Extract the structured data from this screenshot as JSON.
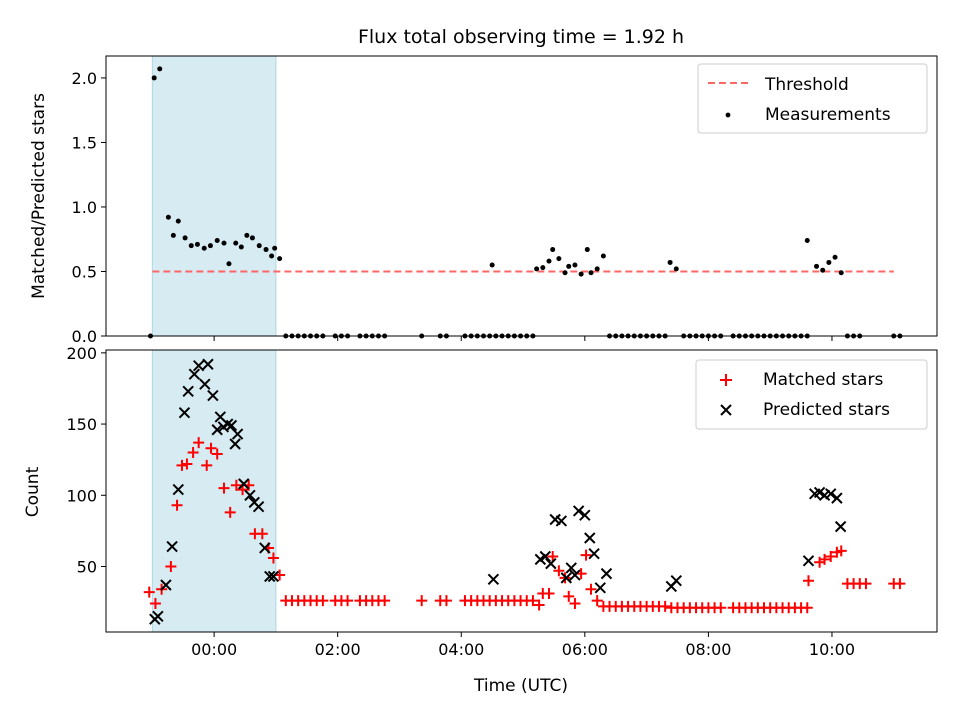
{
  "figure": {
    "title": "Flux total observing time = 1.92 h",
    "xlabel": "Time (UTC)",
    "xticks": [
      "00:00",
      "02:00",
      "04:00",
      "06:00",
      "08:00",
      "10:00"
    ]
  },
  "chart_data": [
    {
      "type": "scatter",
      "ylabel": "Matched/Predicted stars",
      "ylim": [
        0,
        2.17
      ],
      "yticks": [
        "0.0",
        "0.5",
        "1.0",
        "1.5",
        "2.0"
      ],
      "xlim": [
        -1.75,
        11.7
      ],
      "legend_position": "top-right",
      "shaded_span": [
        -1.0,
        1.0
      ],
      "threshold": {
        "name": "Threshold",
        "value": 0.5,
        "x_range": [
          -1.0,
          11.0
        ],
        "color": "#ff6666"
      },
      "measurements": {
        "name": "Measurements",
        "color": "#000000",
        "x": [
          -1.03,
          -0.97,
          -0.88,
          -0.74,
          -0.66,
          -0.58,
          -0.47,
          -0.37,
          -0.27,
          -0.16,
          -0.06,
          0.05,
          0.16,
          0.24,
          0.35,
          0.44,
          0.53,
          0.62,
          0.73,
          0.84,
          0.93,
          0.98,
          1.06,
          1.16,
          1.26,
          1.36,
          1.46,
          1.56,
          1.66,
          1.76,
          1.96,
          2.06,
          2.16,
          2.36,
          2.46,
          2.56,
          2.66,
          2.76,
          3.36,
          3.66,
          3.76,
          4.06,
          4.16,
          4.26,
          4.36,
          4.46,
          4.56,
          4.66,
          4.76,
          4.86,
          4.96,
          5.06,
          5.16,
          4.5,
          5.22,
          5.32,
          5.42,
          5.48,
          5.58,
          5.68,
          5.74,
          5.84,
          5.94,
          6.04,
          6.1,
          6.2,
          6.3,
          7.38,
          7.48,
          9.6,
          9.75,
          9.85,
          9.95,
          10.05,
          10.15,
          6.4,
          6.5,
          6.6,
          6.7,
          6.8,
          6.9,
          7.0,
          7.1,
          7.2,
          7.3,
          7.6,
          7.7,
          7.8,
          7.9,
          8.0,
          8.1,
          8.2,
          8.4,
          8.5,
          8.6,
          8.7,
          8.8,
          8.9,
          9.0,
          9.1,
          9.2,
          9.3,
          9.4,
          9.5,
          9.6,
          10.25,
          10.35,
          10.45,
          11.0,
          11.1
        ],
        "y": [
          0.0,
          2.0,
          2.07,
          0.92,
          0.78,
          0.89,
          0.76,
          0.7,
          0.71,
          0.68,
          0.7,
          0.74,
          0.72,
          0.56,
          0.72,
          0.69,
          0.78,
          0.76,
          0.7,
          0.67,
          0.62,
          0.68,
          0.6,
          0.0,
          0.0,
          0.0,
          0.0,
          0.0,
          0.0,
          0.0,
          0.0,
          0.0,
          0.0,
          0.0,
          0.0,
          0.0,
          0.0,
          0.0,
          0.0,
          0.0,
          0.0,
          0.0,
          0.0,
          0.0,
          0.0,
          0.0,
          0.0,
          0.0,
          0.0,
          0.0,
          0.0,
          0.0,
          0.0,
          0.55,
          0.52,
          0.53,
          0.58,
          0.67,
          0.6,
          0.49,
          0.54,
          0.55,
          0.48,
          0.67,
          0.49,
          0.52,
          0.62,
          0.57,
          0.52,
          0.74,
          0.54,
          0.51,
          0.57,
          0.61,
          0.49,
          0.0,
          0.0,
          0.0,
          0.0,
          0.0,
          0.0,
          0.0,
          0.0,
          0.0,
          0.0,
          0.0,
          0.0,
          0.0,
          0.0,
          0.0,
          0.0,
          0.0,
          0.0,
          0.0,
          0.0,
          0.0,
          0.0,
          0.0,
          0.0,
          0.0,
          0.0,
          0.0,
          0.0,
          0.0,
          0.0,
          0.0,
          0.0,
          0.0,
          0.0,
          0.0
        ]
      }
    },
    {
      "type": "scatter",
      "ylabel": "Count",
      "ylim": [
        4,
        202
      ],
      "yticks": [
        "50",
        "100",
        "150",
        "200"
      ],
      "xlim": [
        -1.75,
        11.7
      ],
      "legend_position": "top-right",
      "shaded_span": [
        -1.0,
        1.0
      ],
      "series": [
        {
          "name": "Matched stars",
          "marker": "plus",
          "color": "#ff0000",
          "x": [
            -1.05,
            -0.95,
            -0.85,
            -0.7,
            -0.6,
            -0.52,
            -0.44,
            -0.34,
            -0.25,
            -0.12,
            -0.05,
            0.05,
            0.16,
            0.26,
            0.36,
            0.46,
            0.56,
            0.66,
            0.78,
            0.88,
            0.96,
            1.06,
            1.16,
            1.26,
            1.36,
            1.46,
            1.56,
            1.66,
            1.76,
            1.96,
            2.06,
            2.16,
            2.36,
            2.46,
            2.56,
            2.66,
            2.76,
            3.36,
            3.66,
            3.76,
            4.06,
            4.16,
            4.26,
            4.36,
            4.46,
            4.56,
            4.66,
            4.76,
            4.86,
            4.96,
            5.06,
            5.16,
            5.26,
            5.32,
            5.42,
            5.48,
            5.58,
            5.68,
            5.74,
            5.84,
            5.94,
            6.02,
            6.1,
            6.2,
            6.3,
            6.4,
            6.5,
            6.6,
            6.7,
            6.8,
            6.9,
            7.0,
            7.1,
            7.2,
            7.3,
            7.4,
            7.5,
            7.6,
            7.7,
            7.8,
            7.9,
            8.0,
            8.1,
            8.2,
            8.4,
            8.5,
            8.6,
            8.7,
            8.8,
            8.9,
            9.0,
            9.1,
            9.2,
            9.3,
            9.4,
            9.5,
            9.6,
            9.62,
            9.8,
            9.88,
            9.98,
            10.08,
            10.15,
            10.25,
            10.35,
            10.45,
            10.55,
            11.0,
            11.1
          ],
          "y": [
            32,
            24,
            34,
            50,
            93,
            121,
            122,
            130,
            137,
            121,
            133,
            129,
            105,
            88,
            107,
            104,
            107,
            73,
            73,
            63,
            56,
            44,
            26,
            26,
            26,
            26,
            26,
            26,
            26,
            26,
            26,
            26,
            26,
            26,
            26,
            26,
            26,
            26,
            26,
            26,
            26,
            26,
            26,
            26,
            26,
            26,
            26,
            26,
            26,
            26,
            26,
            26,
            23,
            31,
            31,
            57,
            47,
            42,
            29,
            24,
            45,
            58,
            34,
            26,
            22,
            22,
            22,
            22,
            22,
            22,
            22,
            22,
            22,
            22,
            22,
            21,
            21,
            21,
            21,
            21,
            21,
            21,
            21,
            21,
            21,
            21,
            21,
            21,
            21,
            21,
            21,
            21,
            21,
            21,
            21,
            21,
            21,
            40,
            53,
            55,
            57,
            60,
            61,
            38,
            38,
            38,
            38,
            38,
            38
          ]
        },
        {
          "name": "Predicted stars",
          "marker": "x",
          "color": "#000000",
          "x": [
            -0.96,
            -0.91,
            -0.78,
            -0.68,
            -0.58,
            -0.48,
            -0.42,
            -0.32,
            -0.25,
            -0.15,
            -0.1,
            -0.02,
            0.05,
            0.1,
            0.15,
            0.22,
            0.28,
            0.34,
            0.38,
            0.48,
            0.58,
            0.65,
            0.72,
            0.82,
            0.9,
            0.96,
            4.52,
            5.28,
            5.36,
            5.45,
            5.52,
            5.62,
            5.7,
            5.78,
            5.84,
            5.9,
            6.0,
            6.08,
            6.15,
            6.25,
            6.35,
            7.4,
            7.48,
            9.62,
            9.72,
            9.8,
            9.88,
            9.98,
            10.08,
            10.14
          ],
          "y": [
            13,
            15,
            37,
            64,
            104,
            158,
            173,
            185,
            191,
            178,
            192,
            170,
            146,
            155,
            148,
            150,
            149,
            136,
            143,
            108,
            100,
            95,
            92,
            63,
            43,
            43,
            41,
            55,
            57,
            52,
            83,
            82,
            42,
            49,
            44,
            89,
            86,
            70,
            59,
            35,
            45,
            36,
            40,
            54,
            101,
            102,
            100,
            101,
            98,
            78
          ]
        }
      ]
    }
  ]
}
